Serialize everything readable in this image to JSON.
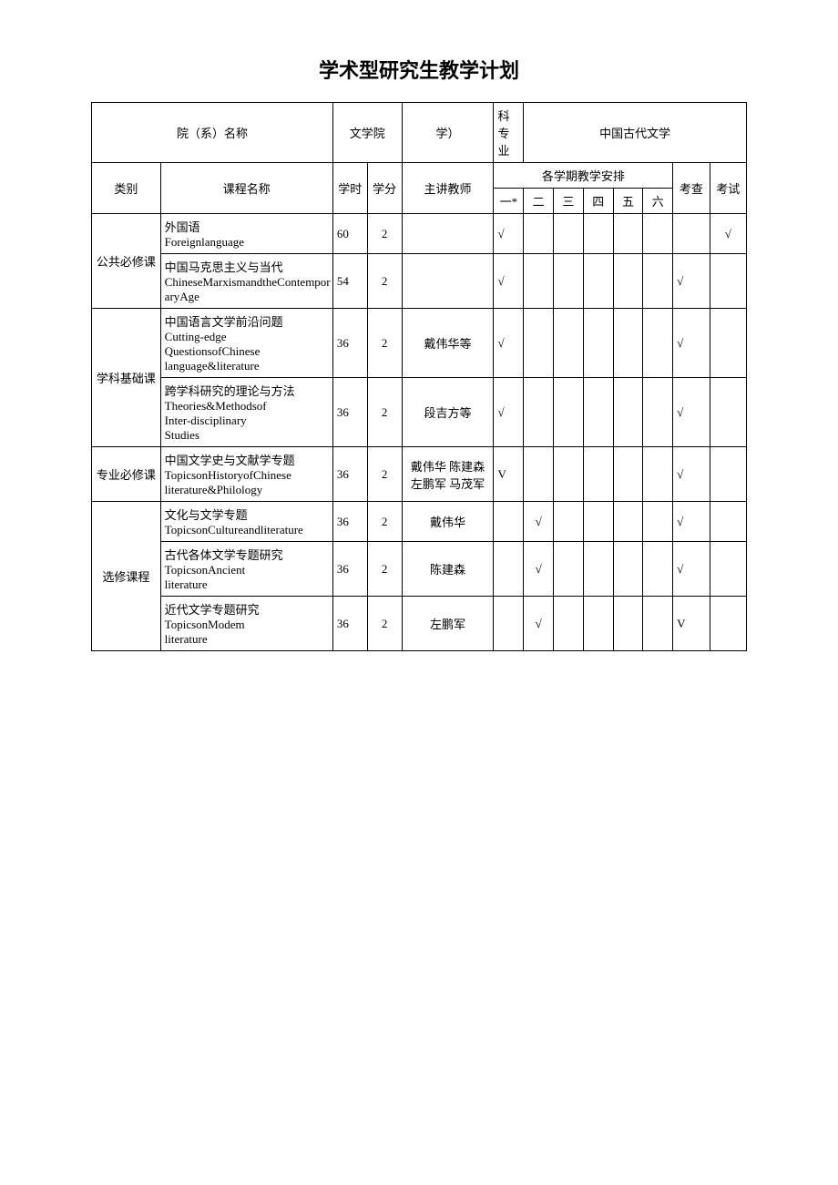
{
  "title": "学术型研究生教学计划",
  "header": {
    "dept_label": "院（系）名称",
    "dept_value": "文学院",
    "subject_label_1": "学）",
    "subject_label_2": "科专业",
    "subject_value": "中国古代文学",
    "category": "类别",
    "course_name": "课程名称",
    "hours": "学时",
    "credit": "学分",
    "teacher": "主讲教师",
    "semester_header": "各学期教学安排",
    "sem1": "一*",
    "sem2": "二",
    "sem3": "三",
    "sem4": "四",
    "sem5": "五",
    "sem6": "六",
    "kaocha": "考查",
    "kaoshi": "考试"
  },
  "categories": [
    {
      "name": "公共必修课",
      "rows": [
        {
          "course": "外国语\nForeignlanguage",
          "hours": "60",
          "credit": "2",
          "teacher": "",
          "s1": "√",
          "s2": "",
          "s3": "",
          "s4": "",
          "s5": "",
          "s6": "",
          "kaocha": "",
          "kaoshi": "√"
        },
        {
          "course": "中国马克思主义与当代\nChineseMarxismandtheContemporaryAge",
          "hours": "54",
          "credit": "2",
          "teacher": "",
          "s1": "√",
          "s2": "",
          "s3": "",
          "s4": "",
          "s5": "",
          "s6": "",
          "kaocha": "√",
          "kaoshi": ""
        }
      ]
    },
    {
      "name": "学科基础课",
      "rows": [
        {
          "course": "中国语言文学前沿问题\nCutting-edge\nQuestionsofChinese\nlanguage&literature",
          "hours": "36",
          "credit": "2",
          "teacher": "戴伟华等",
          "s1": "√",
          "s2": "",
          "s3": "",
          "s4": "",
          "s5": "",
          "s6": "",
          "kaocha": "√",
          "kaoshi": ""
        },
        {
          "course": "跨学科研究的理论与方法\nTheories&Methodsof\nInter-disciplinary\nStudies",
          "hours": "36",
          "credit": "2",
          "teacher": "段吉方等",
          "s1": "√",
          "s2": "",
          "s3": "",
          "s4": "",
          "s5": "",
          "s6": "",
          "kaocha": "√",
          "kaoshi": ""
        }
      ]
    },
    {
      "name": "专业必修课",
      "rows": [
        {
          "course": "中国文学史与文献学专题\nTopicsonHistoryofChinese\nliterature&Philology",
          "hours": "36",
          "credit": "2",
          "teacher": "戴伟华 陈建森 左鹏军 马茂军",
          "s1": "V",
          "s2": "",
          "s3": "",
          "s4": "",
          "s5": "",
          "s6": "",
          "kaocha": "√",
          "kaoshi": ""
        }
      ]
    },
    {
      "name": "选修课程",
      "rows": [
        {
          "course": "文化与文学专题\nTopicsonCultureandliterature",
          "hours": "36",
          "credit": "2",
          "teacher": "戴伟华",
          "s1": "",
          "s2": "√",
          "s3": "",
          "s4": "",
          "s5": "",
          "s6": "",
          "kaocha": "√",
          "kaoshi": ""
        },
        {
          "course": "古代各体文学专题研究\nTopicsonAncient\nliterature",
          "hours": "36",
          "credit": "2",
          "teacher": "陈建森",
          "s1": "",
          "s2": "√",
          "s3": "",
          "s4": "",
          "s5": "",
          "s6": "",
          "kaocha": "√",
          "kaoshi": ""
        },
        {
          "course": "近代文学专题研究\nTopicsonModem\nliterature",
          "hours": "36",
          "credit": "2",
          "teacher": "左鹏军",
          "s1": "",
          "s2": "√",
          "s3": "",
          "s4": "",
          "s5": "",
          "s6": "",
          "kaocha": "V",
          "kaoshi": ""
        }
      ]
    }
  ]
}
